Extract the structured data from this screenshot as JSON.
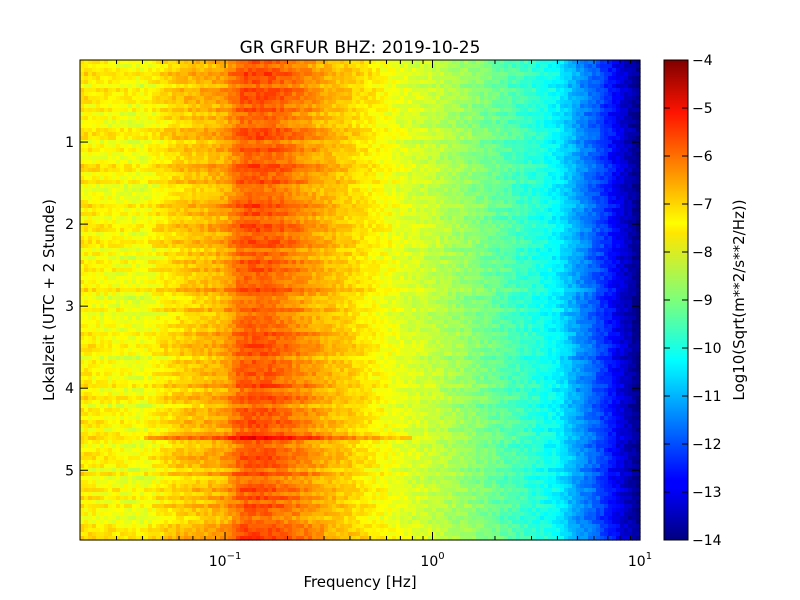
{
  "chart_data": {
    "type": "heatmap",
    "title": "GR GRFUR BHZ: 2019-10-25",
    "xlabel": "Frequency [Hz]",
    "ylabel": "Lokalzeit (UTC + 2 Stunde)",
    "x_scale": "log",
    "xlim": [
      0.02,
      10
    ],
    "ylim": [
      5.85,
      0
    ],
    "y_inverted": true,
    "x_ticks": [
      {
        "value": 0.1,
        "base": "10",
        "exp": "−1"
      },
      {
        "value": 1,
        "base": "10",
        "exp": "0"
      },
      {
        "value": 10,
        "base": "10",
        "exp": "1"
      }
    ],
    "y_ticks": [
      1,
      2,
      3,
      4,
      5
    ],
    "y_tick_labels": [
      "1",
      "2",
      "3",
      "4",
      "5"
    ],
    "colorbar": {
      "label": "Log10(Sqrt(m**2/s**2/Hz))",
      "range": [
        -14,
        -4
      ],
      "ticks": [
        -4,
        -5,
        -6,
        -7,
        -8,
        -9,
        -10,
        -11,
        -12,
        -13,
        -14
      ],
      "tick_labels": [
        "−4",
        "−5",
        "−6",
        "−7",
        "−8",
        "−9",
        "−10",
        "−11",
        "−12",
        "−13",
        "−14"
      ],
      "colormap": "jet"
    },
    "spectrum_profile": {
      "frequency_hz": [
        0.02,
        0.04,
        0.06,
        0.08,
        0.1,
        0.12,
        0.14,
        0.17,
        0.2,
        0.25,
        0.3,
        0.4,
        0.5,
        0.7,
        1.0,
        1.5,
        2.0,
        3.0,
        4.0,
        5.0,
        6.0,
        7.0,
        8.0,
        9.0,
        10.0
      ],
      "level": [
        -7.6,
        -7.9,
        -7.3,
        -7.1,
        -6.9,
        -6.2,
        -6.1,
        -6.2,
        -6.4,
        -6.7,
        -7.0,
        -7.3,
        -7.6,
        -8.0,
        -8.3,
        -8.8,
        -9.2,
        -9.8,
        -10.3,
        -11.2,
        -11.8,
        -12.4,
        -13.0,
        -13.5,
        -14.0
      ]
    },
    "annotations": [
      {
        "description": "brighter horizontal band",
        "time": 4.62,
        "x_from_hz": 0.04,
        "x_to_hz": 0.8,
        "offset": 0.6
      }
    ]
  }
}
